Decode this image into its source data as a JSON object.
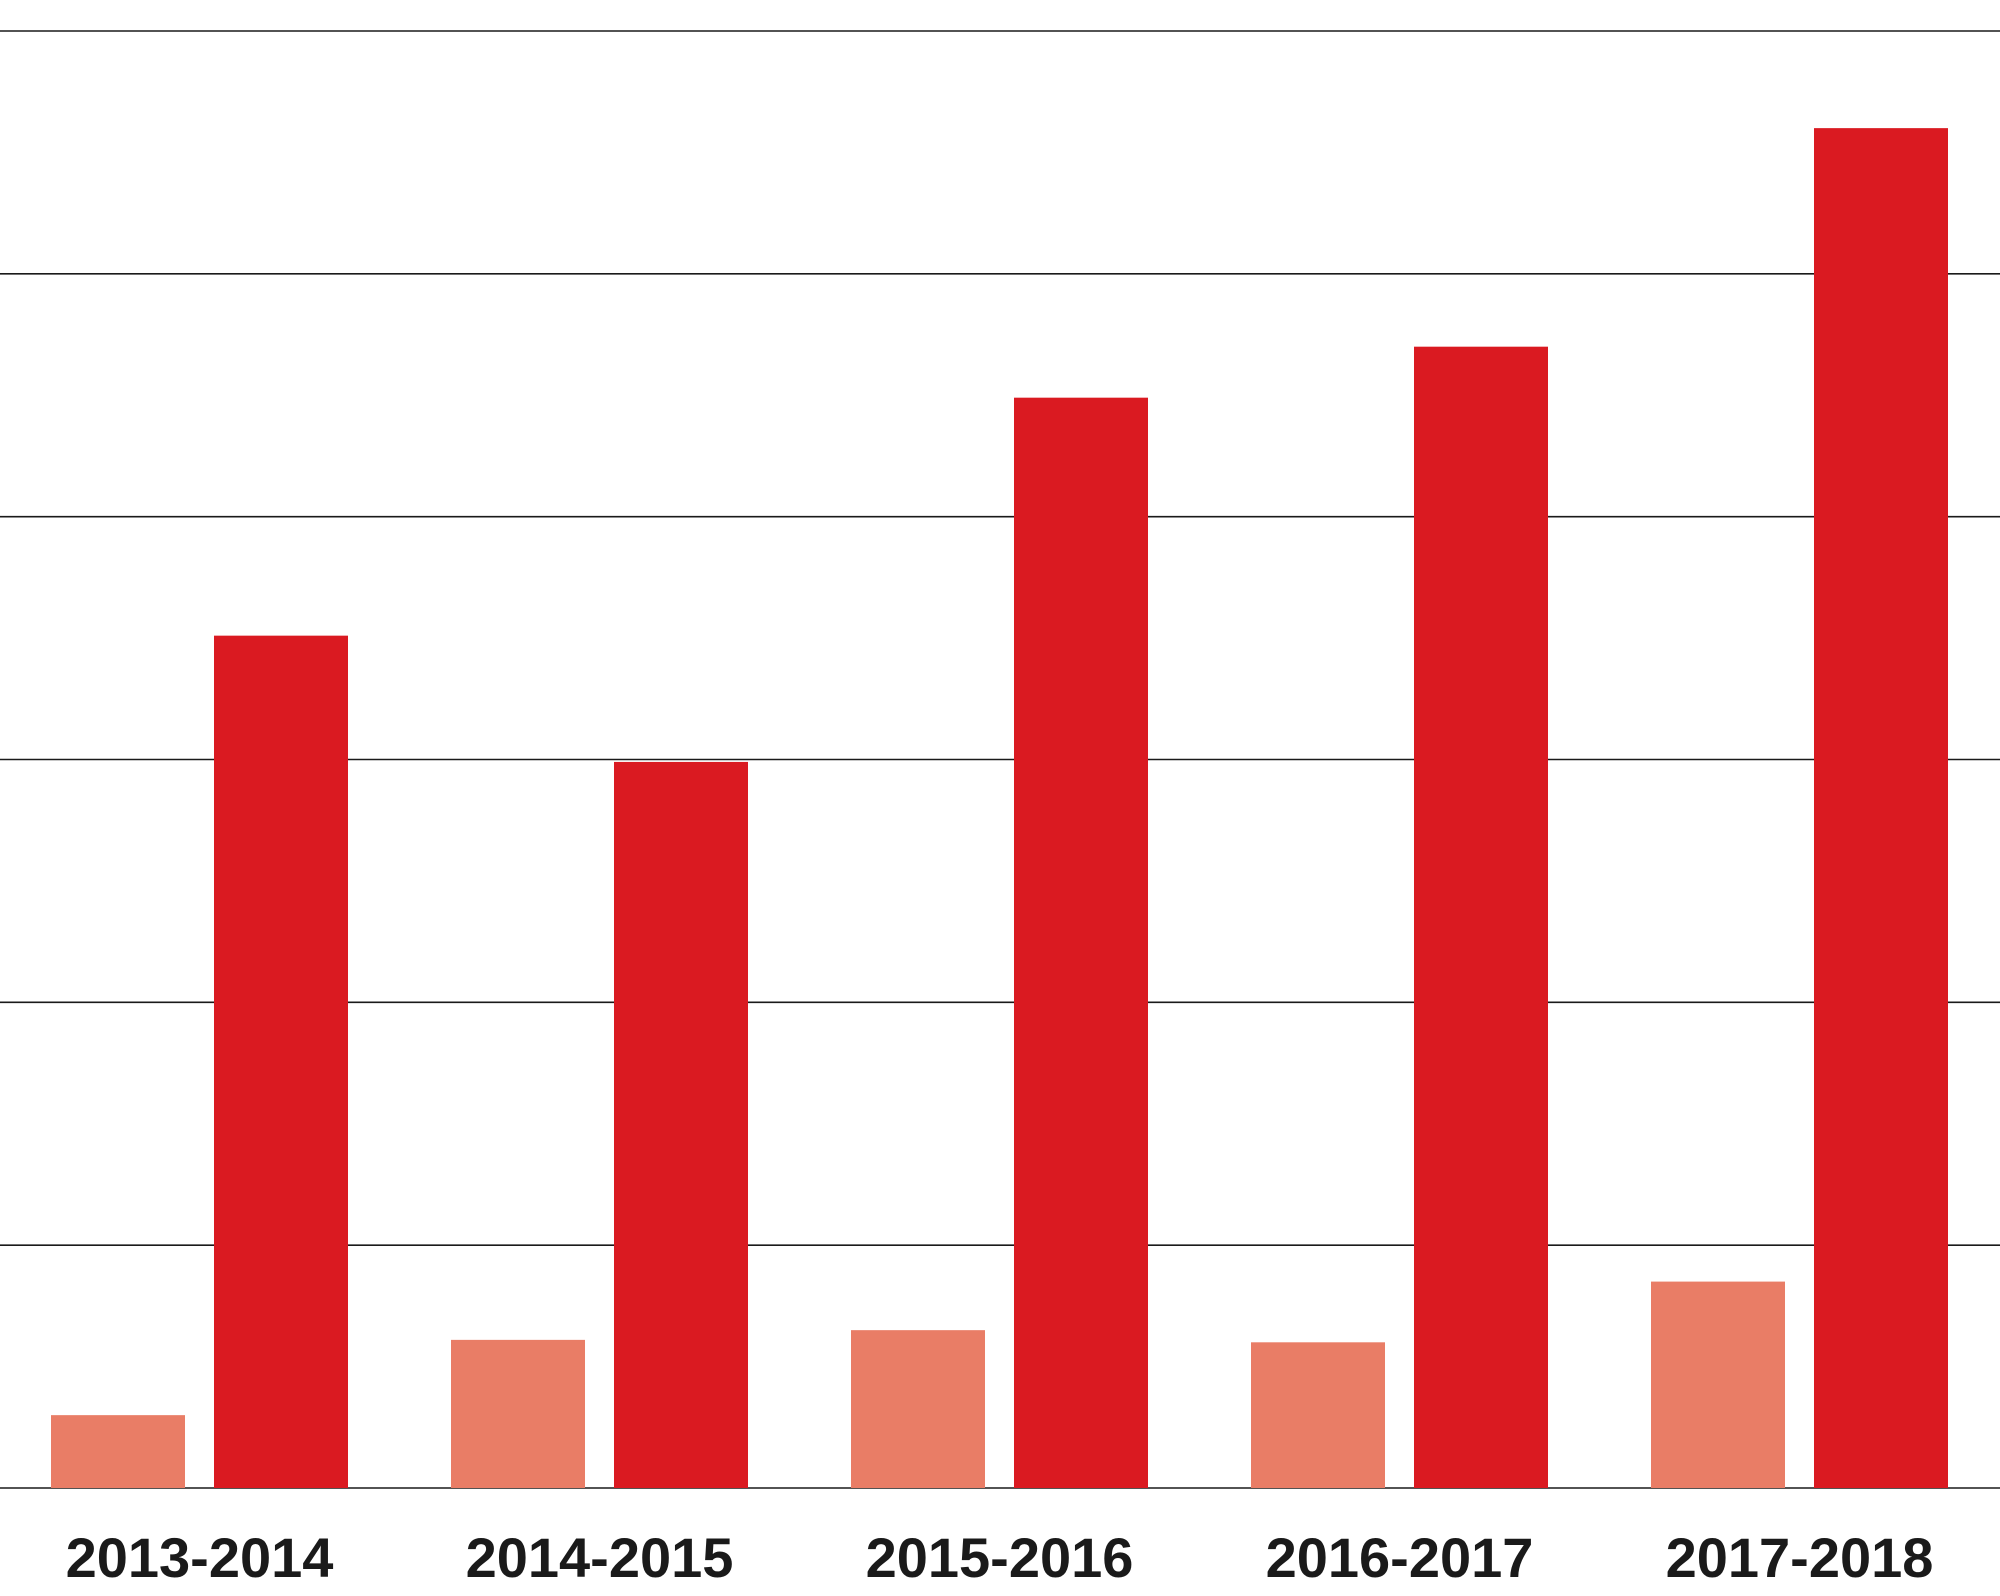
{
  "chart_data": {
    "type": "bar",
    "categories": [
      "2013-2014",
      "2014-2015",
      "2015-2016",
      "2016-2017",
      "2017-2018"
    ],
    "series": [
      {
        "values": [
          1.5,
          3.05,
          3.25,
          3.0,
          4.25
        ],
        "color": "#e97d66"
      },
      {
        "values": [
          17.55,
          14.95,
          22.45,
          23.5,
          28.0
        ],
        "color": "#da1a21"
      }
    ],
    "ylim": [
      0,
      30
    ],
    "yticks": [
      0,
      5,
      10,
      15,
      20,
      25,
      30
    ],
    "grid": true,
    "xlabel": "",
    "ylabel": "",
    "title": ""
  }
}
